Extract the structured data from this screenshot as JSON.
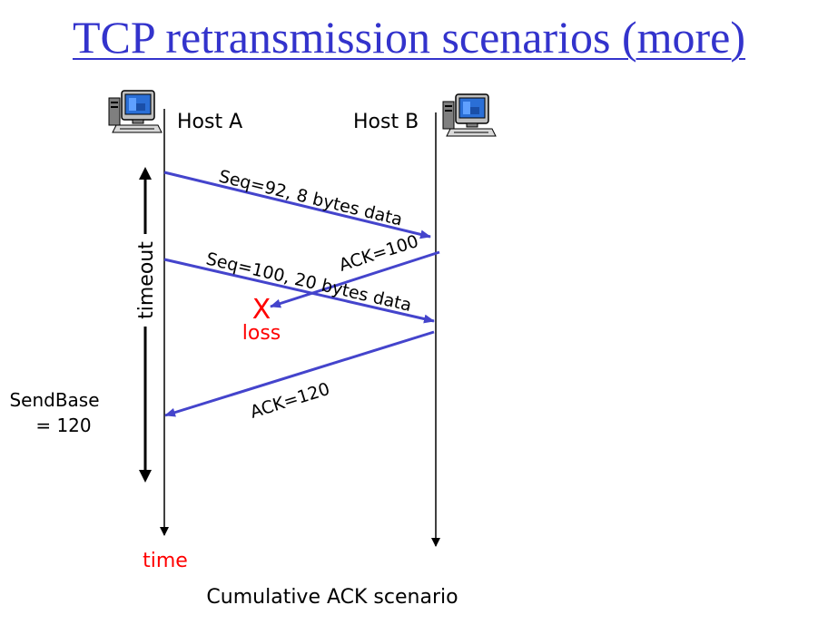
{
  "title": "TCP retransmission scenarios (more)",
  "host_a": "Host A",
  "host_b": "Host B",
  "messages": {
    "seq92": "Seq=92, 8 bytes data",
    "ack100": "ACK=100",
    "seq100": "Seq=100, 20 bytes data",
    "ack120": "ACK=120"
  },
  "loss_mark": "X",
  "loss_label": "loss",
  "timeout_label": "timeout",
  "sendbase_line1": "SendBase",
  "sendbase_line2": "= 120",
  "time_label": "time",
  "caption": "Cumulative ACK scenario",
  "colors": {
    "title": "#3333cc",
    "arrow": "#4444cc",
    "loss": "#ff0000",
    "text": "#000000"
  },
  "icons": [
    "computer-icon"
  ]
}
